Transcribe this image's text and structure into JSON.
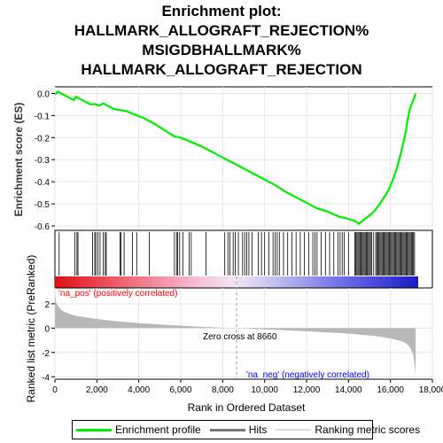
{
  "chart_data": {
    "type": "line",
    "title_lines": [
      "Enrichment plot:",
      "HALLMARK_ALLOGRAFT_REJECTION%",
      "MSIGDBHALLMARK%",
      "HALLMARK_ALLOGRAFT_REJECTION"
    ],
    "xlabel": "Rank in Ordered Dataset",
    "es_ylabel": "Enrichment score (ES)",
    "metric_ylabel": "Ranked list metric (PreRanked)",
    "xlim": [
      0,
      18000
    ],
    "x_ticks": [
      "0",
      "2,000",
      "4,000",
      "6,000",
      "8,000",
      "10,000",
      "12,000",
      "14,000",
      "16,000",
      "18,000"
    ],
    "x_tick_values": [
      0,
      2000,
      4000,
      6000,
      8000,
      10000,
      12000,
      14000,
      16000,
      18000
    ],
    "es_ylim": [
      -0.62,
      0.03
    ],
    "es_ticks": [
      "0.0",
      "-0.1",
      "-0.2",
      "-0.3",
      "-0.4",
      "-0.5",
      "-0.6"
    ],
    "es_tick_values": [
      0.0,
      -0.1,
      -0.2,
      -0.3,
      -0.4,
      -0.5,
      -0.6
    ],
    "metric_ylim": [
      -4.2,
      3.3
    ],
    "metric_ticks": [
      "2",
      "0",
      "-2",
      "-4"
    ],
    "metric_tick_values": [
      2,
      0,
      -2,
      -4
    ],
    "enrichment_profile": {
      "x": [
        0,
        150,
        300,
        600,
        900,
        1000,
        1100,
        1400,
        1700,
        1900,
        2100,
        2300,
        2500,
        2800,
        3100,
        3400,
        3800,
        4200,
        4700,
        5200,
        5700,
        6000,
        6500,
        7000,
        7500,
        8000,
        8500,
        9000,
        9500,
        10000,
        10500,
        11000,
        11500,
        12000,
        12500,
        13000,
        13300,
        13600,
        13900,
        14100,
        14300,
        14500,
        14700,
        14900,
        15100,
        15300,
        15500,
        15700,
        15900,
        16100,
        16300,
        16500,
        16700,
        16800,
        16900,
        17000,
        17100,
        17200
      ],
      "y": [
        -0.005,
        0.008,
        0.0,
        -0.015,
        -0.03,
        -0.015,
        -0.02,
        -0.035,
        -0.05,
        -0.048,
        -0.055,
        -0.045,
        -0.055,
        -0.07,
        -0.075,
        -0.08,
        -0.095,
        -0.11,
        -0.135,
        -0.165,
        -0.195,
        -0.2,
        -0.22,
        -0.24,
        -0.265,
        -0.29,
        -0.315,
        -0.34,
        -0.365,
        -0.39,
        -0.415,
        -0.445,
        -0.47,
        -0.495,
        -0.52,
        -0.535,
        -0.548,
        -0.56,
        -0.565,
        -0.572,
        -0.578,
        -0.59,
        -0.575,
        -0.56,
        -0.545,
        -0.525,
        -0.5,
        -0.47,
        -0.44,
        -0.395,
        -0.34,
        -0.27,
        -0.19,
        -0.13,
        -0.08,
        -0.05,
        -0.03,
        0.0
      ]
    },
    "hits_positions": [
      200,
      950,
      1050,
      1100,
      1800,
      1900,
      1950,
      2050,
      2150,
      2300,
      2400,
      2450,
      3100,
      3150,
      3300,
      3700,
      3900,
      4500,
      5700,
      5800,
      5850,
      5950,
      6100,
      6400,
      6500,
      7200,
      8100,
      8250,
      8350,
      8500,
      8600,
      8750,
      8950,
      9050,
      9150,
      9250,
      9400,
      9700,
      9850,
      10000,
      10200,
      10400,
      10500,
      10600,
      10700,
      10900,
      11100,
      11300,
      11500,
      11700,
      11900,
      12100,
      12300,
      12400,
      12500,
      12700,
      12900,
      13100,
      13300,
      13500,
      13600,
      13700,
      13800,
      14000,
      14300,
      14350,
      14400,
      14450,
      14500,
      14550,
      14600,
      14650,
      14700,
      14750,
      14800,
      14850,
      14900,
      14950,
      15000,
      15050,
      15100,
      15200,
      15300,
      15350,
      15400,
      15450,
      15500,
      15550,
      15600,
      15650,
      15700,
      15750,
      15800,
      15850,
      15900,
      15950,
      16000,
      16050,
      16100,
      16150,
      16200,
      16250,
      16300,
      16350,
      16400,
      16450,
      16500,
      16550,
      16600,
      16650,
      16700,
      16750,
      16800,
      16850,
      16900,
      16950,
      17000,
      17050,
      17100,
      17150
    ],
    "ranked_metric": {
      "x": [
        0,
        50,
        150,
        300,
        500,
        800,
        1200,
        2000,
        3000,
        4000,
        5000,
        6000,
        7000,
        8000,
        8660,
        10000,
        11000,
        12000,
        13000,
        14000,
        15000,
        15500,
        16000,
        16400,
        16700,
        16900,
        17000,
        17100,
        17150,
        17200
      ],
      "y": [
        3.0,
        2.2,
        1.8,
        1.5,
        1.3,
        1.1,
        0.95,
        0.75,
        0.55,
        0.42,
        0.3,
        0.2,
        0.1,
        0.03,
        0.0,
        -0.1,
        -0.18,
        -0.26,
        -0.35,
        -0.45,
        -0.6,
        -0.7,
        -0.85,
        -1.0,
        -1.2,
        -1.5,
        -1.8,
        -2.3,
        -3.0,
        -3.9
      ]
    },
    "zero_cross_label": "Zero cross at 8660",
    "zero_cross_x": 8660,
    "pos_label": "'na_pos' (positively correlated)",
    "neg_label": "'na_neg' (negatively correlated)",
    "colors": {
      "profile": "#00ee00",
      "hits": "#000000",
      "metric_fill": "#b8b8b8",
      "pos_label": "#ff0000",
      "neg_label": "#0000ff",
      "zero_line": "#999999"
    },
    "legend": {
      "placement": "bottom",
      "items": [
        "Enrichment profile",
        "Hits",
        "Ranking metric scores"
      ]
    }
  }
}
